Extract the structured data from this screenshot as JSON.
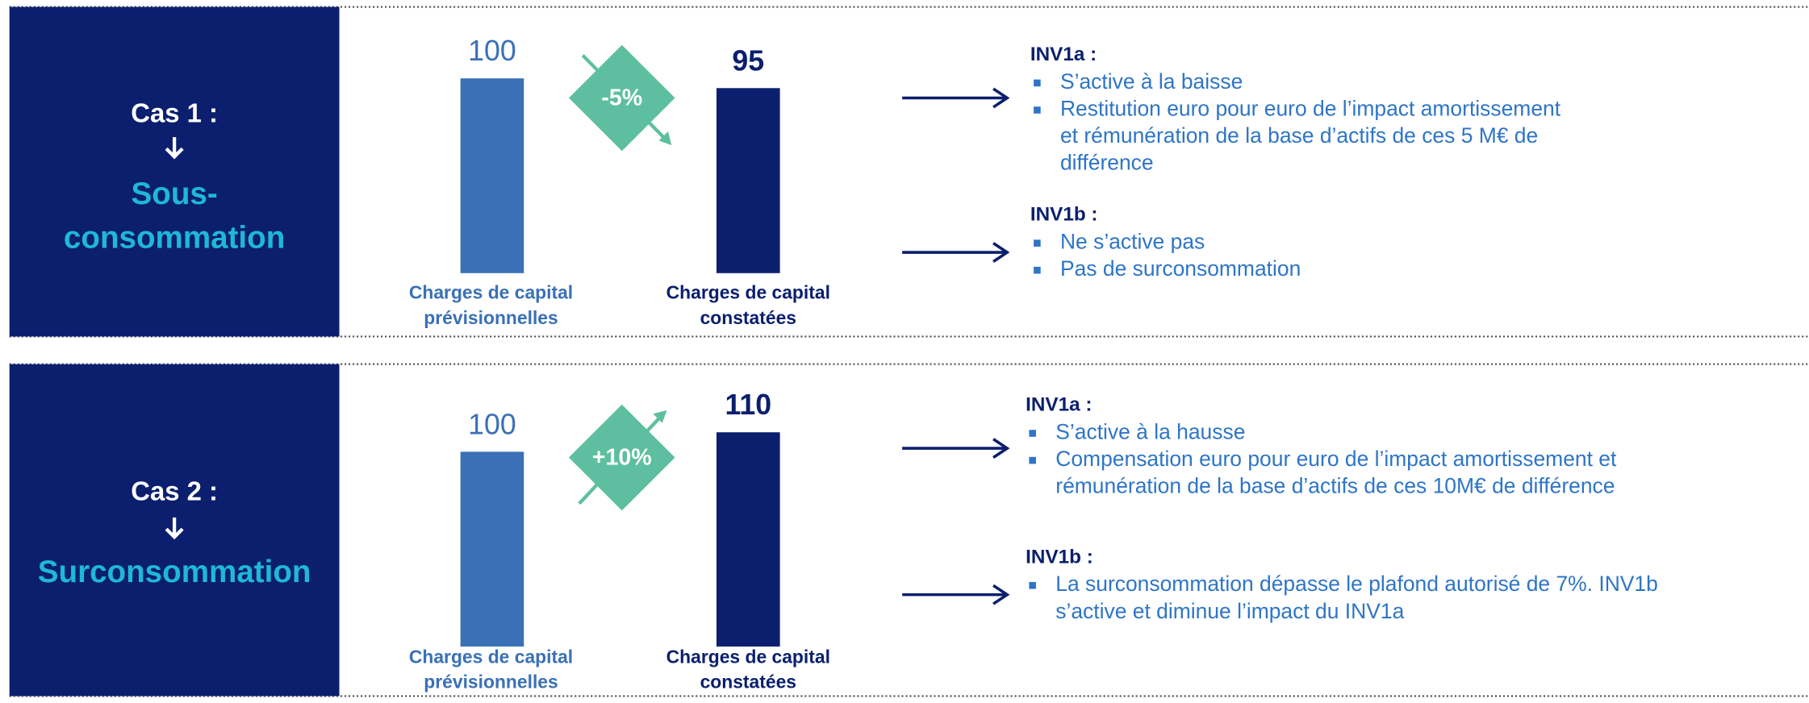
{
  "cases": [
    {
      "title": "Cas 1 :",
      "subtitle_lines": [
        "Sous-",
        "consommation"
      ],
      "bars": [
        {
          "value": 100,
          "label_lines": [
            "Charges de capital",
            "prévisionnelles"
          ]
        },
        {
          "value": 95,
          "label_lines": [
            "Charges de capital",
            "constatées"
          ]
        }
      ],
      "change": "-5%",
      "sections": [
        {
          "heading": "INV1a :",
          "bullets": [
            [
              "S’active à la baisse"
            ],
            [
              "Restitution euro pour euro de l’impact amortissement",
              "et rémunération de la base d’actifs de ces 5 M€ de",
              "différence"
            ]
          ]
        },
        {
          "heading": "INV1b :",
          "bullets": [
            [
              "Ne s’active pas"
            ],
            [
              "Pas de surconsommation"
            ]
          ]
        }
      ]
    },
    {
      "title": "Cas 2 :",
      "subtitle_lines": [
        "Surconsommation"
      ],
      "bars": [
        {
          "value": 100,
          "label_lines": [
            "Charges de capital",
            "prévisionnelles"
          ]
        },
        {
          "value": 110,
          "label_lines": [
            "Charges de capital",
            "constatées"
          ]
        }
      ],
      "change": "+10%",
      "sections": [
        {
          "heading": "INV1a :",
          "bullets": [
            [
              "S’active à la hausse"
            ],
            [
              "Compensation euro pour euro de l’impact amortissement et",
              "rémunération de la base d’actifs de ces 10M€ de différence"
            ]
          ]
        },
        {
          "heading": "INV1b :",
          "bullets": [
            [
              "La surconsommation dépasse le plafond autorisé de 7%. INV1b",
              "s’active et diminue l’impact du INV1a"
            ]
          ]
        }
      ]
    }
  ]
}
